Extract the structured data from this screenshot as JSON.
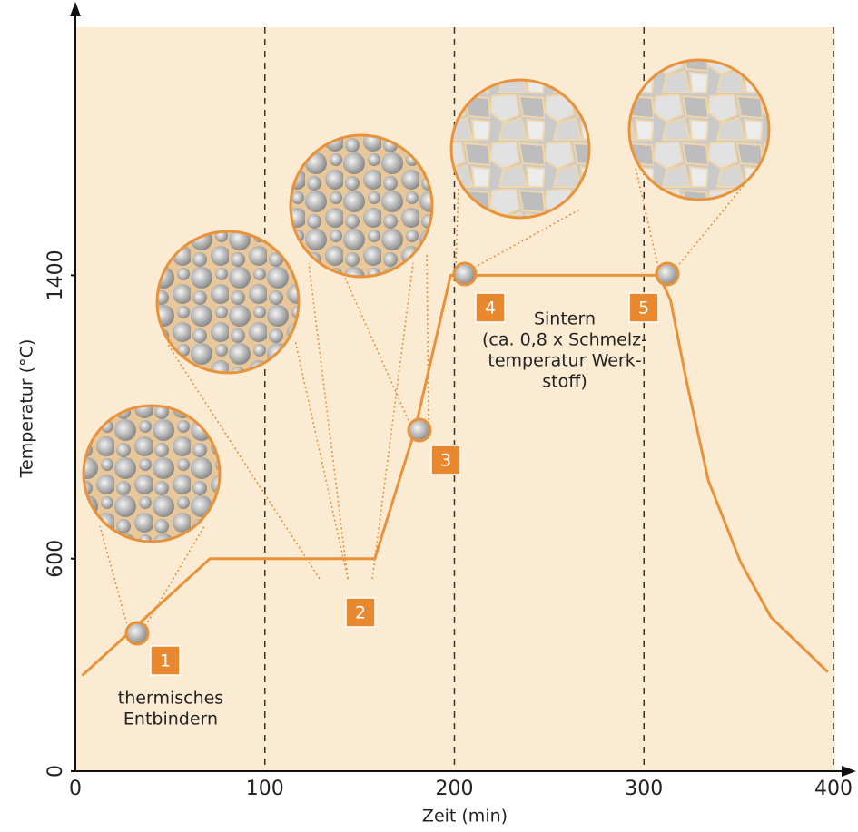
{
  "chart_data": {
    "type": "line",
    "xlabel": "Zeit (min)",
    "ylabel": "Temperatur (°C)",
    "x": [
      3.6,
      71,
      158,
      179,
      198,
      308,
      314,
      322.5,
      334,
      351,
      367,
      397
    ],
    "values": [
      270,
      600,
      600,
      960,
      1400,
      1400,
      1330,
      1100,
      820,
      590,
      435,
      280
    ],
    "color": "#e8923a",
    "xlim": [
      0,
      400
    ],
    "ylim": [
      0,
      2100
    ],
    "xticks": [
      0,
      100,
      200,
      300,
      400
    ],
    "yticks": [
      0,
      600,
      1400
    ],
    "grid_x": true,
    "stages": [
      "1",
      "2",
      "3",
      "4",
      "5"
    ],
    "annotations": [
      [
        "thermisches",
        "Entbindern"
      ],
      [
        "Sintern",
        "(ca. 0,8 x Schmelz-",
        "temperatur Werk-",
        "stoff)"
      ]
    ]
  }
}
